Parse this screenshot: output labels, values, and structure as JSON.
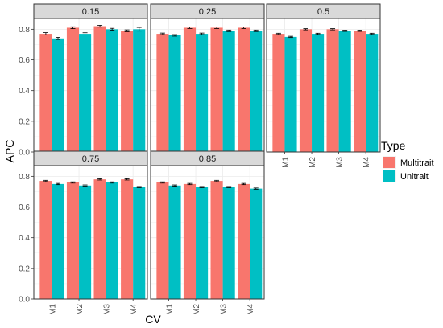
{
  "chart_data": {
    "type": "bar",
    "xlabel": "CV",
    "ylabel": "APC",
    "categories": [
      "M1",
      "M2",
      "M3",
      "M4"
    ],
    "ylim": [
      0,
      0.87
    ],
    "yticks": [
      "0.0",
      "0.2",
      "0.4",
      "0.6",
      "0.8"
    ],
    "grid": true,
    "legend": {
      "title": "Type",
      "placement": "right",
      "entries": [
        "Multitrait",
        "Unitrait"
      ]
    },
    "series_colors": {
      "Multitrait": "#F8766D",
      "Unitrait": "#00BFC4"
    },
    "panels": [
      {
        "label": "0.15",
        "series": [
          {
            "name": "Multitrait",
            "values": [
              0.77,
              0.81,
              0.82,
              0.79
            ],
            "error": [
              0.008,
              0.006,
              0.006,
              0.006
            ]
          },
          {
            "name": "Unitrait",
            "values": [
              0.74,
              0.77,
              0.8,
              0.8
            ],
            "error": [
              0.007,
              0.007,
              0.006,
              0.012
            ]
          }
        ]
      },
      {
        "label": "0.25",
        "series": [
          {
            "name": "Multitrait",
            "values": [
              0.77,
              0.81,
              0.81,
              0.81
            ],
            "error": [
              0.005,
              0.005,
              0.005,
              0.005
            ]
          },
          {
            "name": "Unitrait",
            "values": [
              0.76,
              0.77,
              0.79,
              0.79
            ],
            "error": [
              0.005,
              0.005,
              0.005,
              0.005
            ]
          }
        ]
      },
      {
        "label": "0.5",
        "series": [
          {
            "name": "Multitrait",
            "values": [
              0.77,
              0.8,
              0.8,
              0.79
            ],
            "error": [
              0.004,
              0.004,
              0.004,
              0.004
            ]
          },
          {
            "name": "Unitrait",
            "values": [
              0.75,
              0.77,
              0.79,
              0.77
            ],
            "error": [
              0.004,
              0.004,
              0.004,
              0.004
            ]
          }
        ]
      },
      {
        "label": "0.75",
        "series": [
          {
            "name": "Multitrait",
            "values": [
              0.77,
              0.76,
              0.78,
              0.78
            ],
            "error": [
              0.004,
              0.004,
              0.004,
              0.004
            ]
          },
          {
            "name": "Unitrait",
            "values": [
              0.75,
              0.74,
              0.76,
              0.73
            ],
            "error": [
              0.004,
              0.004,
              0.004,
              0.004
            ]
          }
        ]
      },
      {
        "label": "0.85",
        "series": [
          {
            "name": "Multitrait",
            "values": [
              0.76,
              0.75,
              0.77,
              0.75
            ],
            "error": [
              0.004,
              0.004,
              0.004,
              0.004
            ]
          },
          {
            "name": "Unitrait",
            "values": [
              0.74,
              0.73,
              0.73,
              0.72
            ],
            "error": [
              0.004,
              0.004,
              0.004,
              0.004
            ]
          }
        ]
      }
    ]
  }
}
